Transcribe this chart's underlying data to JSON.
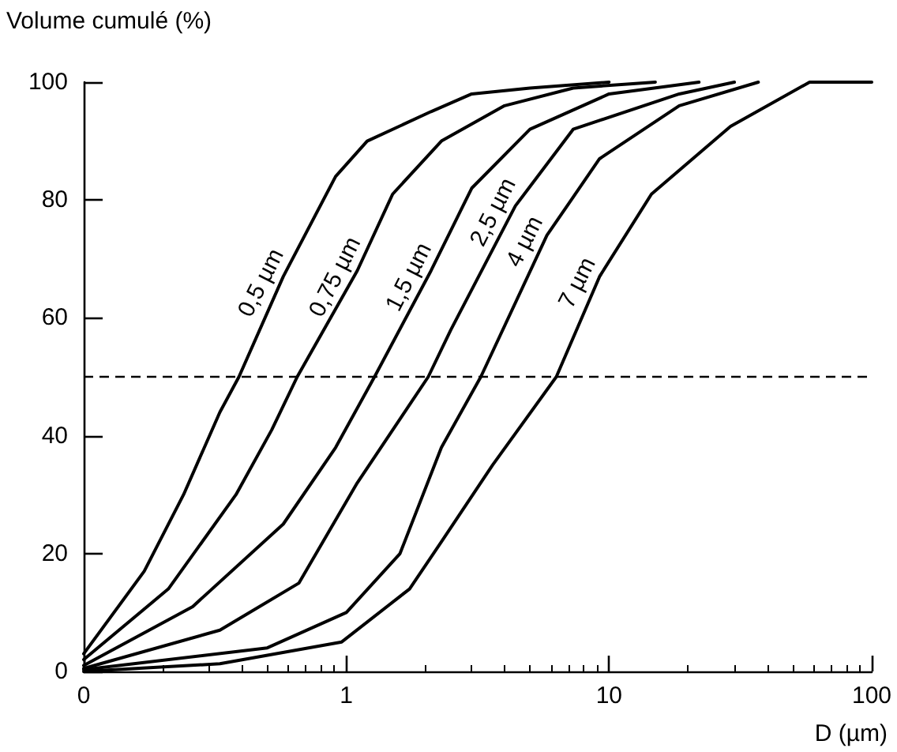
{
  "chart_data": {
    "type": "line",
    "xlabel": "D (µm)",
    "ylabel": "Volume cumulé (%)",
    "log": "x",
    "xlim": [
      0.1,
      100
    ],
    "xticks": [
      {
        "value": 0.1,
        "label": "0"
      },
      1,
      10,
      100
    ],
    "ylim": [
      0,
      100
    ],
    "yticks": [
      0,
      20,
      40,
      60,
      80,
      100
    ],
    "grid": false,
    "legend": false,
    "line_style": "solid",
    "ref_lines": [
      {
        "axis": "y",
        "value": 50,
        "label": null,
        "color": "#000000",
        "line_style": "dashed"
      }
    ],
    "series": [
      {
        "name": "0,5 µm",
        "color": "#000000",
        "x": [
          0.1,
          0.17,
          0.24,
          0.33,
          0.39,
          0.575,
          0.91,
          1.2,
          2.1,
          3,
          5,
          10
        ],
        "values": [
          3,
          17,
          30,
          44,
          50,
          67,
          84,
          90,
          95,
          98,
          99,
          100
        ]
      },
      {
        "name": "0,75 µm",
        "color": "#000000",
        "x": [
          0.1,
          0.21,
          0.38,
          0.52,
          0.65,
          1.1,
          1.5,
          2.3,
          4,
          7.3,
          15
        ],
        "values": [
          2,
          14,
          30,
          41,
          50,
          68,
          81,
          90,
          96,
          99,
          100
        ]
      },
      {
        "name": "1,5 µm",
        "color": "#000000",
        "x": [
          0.1,
          0.26,
          0.575,
          0.91,
          1.28,
          2.1,
          3,
          5,
          10,
          22
        ],
        "values": [
          1,
          11,
          25,
          38,
          50,
          68,
          82,
          92,
          98,
          100
        ]
      },
      {
        "name": "2,5 µm",
        "color": "#000000",
        "x": [
          0.1,
          0.33,
          0.66,
          1.1,
          2.05,
          2.5,
          4.4,
          7.3,
          18.5,
          30
        ],
        "values": [
          0.5,
          7,
          15,
          32,
          50,
          58,
          79,
          92,
          98,
          100
        ]
      },
      {
        "name": "4 µm",
        "color": "#000000",
        "x": [
          0.1,
          0.5,
          1,
          1.6,
          2.3,
          3.25,
          5.8,
          9.2,
          18.5,
          37
        ],
        "values": [
          0.3,
          4,
          10,
          20,
          38,
          50,
          74,
          87,
          96,
          100
        ]
      },
      {
        "name": "7 µm",
        "color": "#000000",
        "x": [
          0.1,
          0.33,
          0.96,
          1.74,
          2.3,
          3.6,
          6.3,
          9.2,
          14.5,
          29,
          58,
          100
        ],
        "values": [
          0,
          1.3,
          5,
          14,
          22,
          35,
          50,
          67,
          81,
          92.5,
          100,
          100
        ]
      }
    ]
  }
}
